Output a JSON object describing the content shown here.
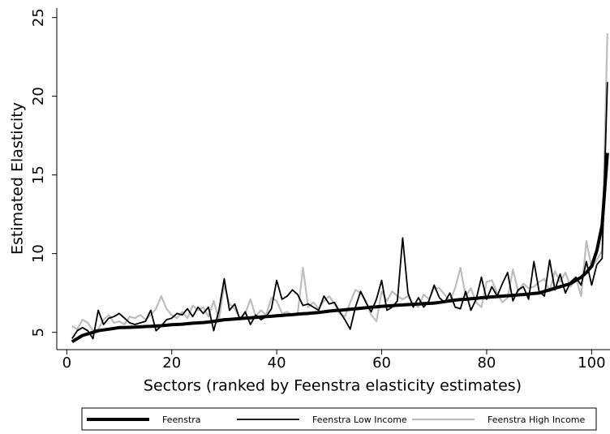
{
  "chart_data": {
    "type": "line",
    "x_label": "Sectors (ranked by Feenstra elasticity estimates)",
    "y_label": "Estimated Elasticity",
    "x": [
      1,
      2,
      3,
      4,
      5,
      6,
      7,
      8,
      9,
      10,
      11,
      12,
      13,
      14,
      15,
      16,
      17,
      18,
      19,
      20,
      21,
      22,
      23,
      24,
      25,
      26,
      27,
      28,
      29,
      30,
      31,
      32,
      33,
      34,
      35,
      36,
      37,
      38,
      39,
      40,
      41,
      42,
      43,
      44,
      45,
      46,
      47,
      48,
      49,
      50,
      51,
      52,
      53,
      54,
      55,
      56,
      57,
      58,
      59,
      60,
      61,
      62,
      63,
      64,
      65,
      66,
      67,
      68,
      69,
      70,
      71,
      72,
      73,
      74,
      75,
      76,
      77,
      78,
      79,
      80,
      81,
      82,
      83,
      84,
      85,
      86,
      87,
      88,
      89,
      90,
      91,
      92,
      93,
      94,
      95,
      96,
      97,
      98,
      99,
      100,
      101,
      102,
      103
    ],
    "series": [
      {
        "name": "Feenstra",
        "color": "#000000",
        "width": 4,
        "values": [
          4.4,
          4.6,
          4.8,
          4.9,
          5.0,
          5.1,
          5.15,
          5.2,
          5.25,
          5.3,
          5.3,
          5.32,
          5.33,
          5.35,
          5.37,
          5.38,
          5.4,
          5.42,
          5.45,
          5.48,
          5.5,
          5.52,
          5.55,
          5.58,
          5.6,
          5.62,
          5.65,
          5.7,
          5.75,
          5.8,
          5.82,
          5.85,
          5.88,
          5.9,
          5.92,
          5.95,
          5.97,
          6.0,
          6.02,
          6.05,
          6.07,
          6.1,
          6.12,
          6.15,
          6.18,
          6.2,
          6.23,
          6.26,
          6.3,
          6.35,
          6.38,
          6.4,
          6.43,
          6.46,
          6.5,
          6.53,
          6.56,
          6.6,
          6.62,
          6.65,
          6.67,
          6.7,
          6.72,
          6.74,
          6.76,
          6.78,
          6.8,
          6.82,
          6.84,
          6.86,
          6.9,
          6.95,
          7.0,
          7.05,
          7.08,
          7.1,
          7.13,
          7.16,
          7.2,
          7.22,
          7.25,
          7.27,
          7.3,
          7.32,
          7.35,
          7.38,
          7.4,
          7.43,
          7.47,
          7.5,
          7.6,
          7.7,
          7.8,
          7.9,
          8.0,
          8.1,
          8.3,
          8.5,
          8.8,
          9.2,
          10.2,
          11.8,
          16.4
        ]
      },
      {
        "name": "Feenstra Low Income",
        "color": "#000000",
        "width": 1.8,
        "values": [
          4.6,
          5.1,
          5.3,
          5.1,
          4.6,
          6.4,
          5.5,
          5.9,
          6.0,
          6.2,
          5.9,
          5.6,
          5.5,
          5.6,
          5.7,
          6.4,
          5.1,
          5.4,
          5.8,
          5.9,
          6.2,
          6.1,
          6.5,
          6.0,
          6.6,
          6.2,
          6.6,
          5.1,
          6.4,
          8.4,
          6.4,
          6.8,
          5.8,
          6.3,
          5.5,
          6.1,
          5.8,
          6.0,
          6.5,
          8.3,
          7.1,
          7.3,
          7.7,
          7.4,
          6.7,
          6.8,
          6.6,
          6.4,
          7.3,
          6.8,
          6.9,
          6.3,
          5.8,
          5.2,
          6.6,
          7.6,
          6.9,
          6.3,
          7.1,
          8.3,
          6.4,
          6.6,
          7.0,
          11.0,
          7.5,
          6.6,
          7.2,
          6.6,
          7.0,
          8.0,
          7.2,
          6.9,
          7.5,
          6.6,
          6.5,
          7.6,
          6.4,
          7.1,
          8.5,
          7.1,
          7.9,
          7.3,
          8.1,
          8.8,
          7.0,
          7.7,
          7.9,
          7.1,
          9.5,
          7.6,
          7.3,
          9.6,
          7.7,
          8.7,
          7.5,
          8.2,
          8.5,
          8.0,
          9.5,
          8.0,
          9.3,
          9.7,
          20.9
        ]
      },
      {
        "name": "Feenstra High Income",
        "color": "#bdbdbd",
        "width": 2.2,
        "values": [
          5.4,
          5.2,
          5.8,
          5.6,
          5.1,
          5.2,
          5.8,
          6.1,
          5.6,
          5.7,
          5.5,
          6.0,
          5.9,
          6.1,
          5.8,
          6.1,
          6.5,
          7.3,
          6.5,
          6.1,
          5.9,
          6.3,
          5.9,
          6.7,
          6.4,
          6.6,
          6.0,
          7.0,
          5.8,
          8.0,
          6.8,
          6.5,
          5.9,
          6.2,
          7.1,
          6.0,
          6.4,
          6.1,
          7.2,
          7.0,
          6.2,
          6.3,
          6.1,
          6.2,
          9.1,
          6.6,
          6.9,
          6.5,
          7.0,
          7.3,
          6.8,
          6.2,
          6.0,
          6.9,
          7.7,
          7.5,
          7.0,
          6.1,
          5.7,
          7.6,
          7.0,
          7.6,
          7.3,
          7.1,
          7.3,
          6.8,
          6.6,
          7.4,
          7.1,
          7.8,
          7.8,
          7.4,
          7.0,
          7.8,
          9.1,
          7.3,
          7.8,
          6.9,
          6.6,
          8.2,
          8.3,
          7.5,
          6.9,
          7.2,
          9.0,
          7.6,
          8.1,
          7.8,
          7.9,
          8.2,
          8.4,
          7.6,
          8.9,
          8.2,
          8.8,
          7.9,
          8.5,
          7.3,
          10.8,
          9.1,
          9.6,
          10.2,
          24.0
        ]
      }
    ],
    "xlim": [
      -1.9,
      103.5
    ],
    "xticks": [
      0,
      20,
      40,
      60,
      80,
      100
    ],
    "ylim": [
      3.9,
      25.6
    ],
    "yticks": [
      5,
      10,
      15,
      20,
      25
    ]
  }
}
